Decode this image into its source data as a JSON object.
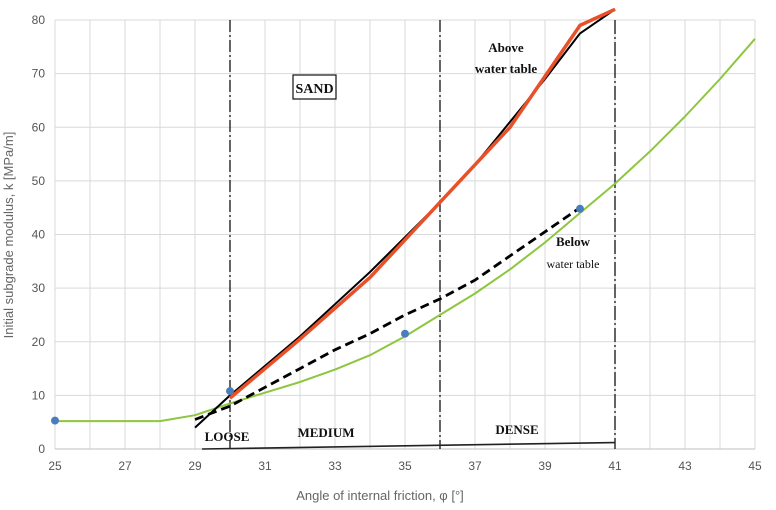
{
  "chart_data": {
    "type": "line",
    "xlabel": "Angle of internal friction, φ [°]",
    "ylabel": "Initial subgrade modulus, k [MPa/m]",
    "xlim": [
      25,
      45
    ],
    "ylim": [
      0,
      80
    ],
    "x_ticks": [
      25,
      27,
      29,
      31,
      33,
      35,
      37,
      39,
      41,
      43,
      45
    ],
    "y_ticks": [
      0,
      10,
      20,
      30,
      40,
      50,
      60,
      70,
      80
    ],
    "grid": true,
    "series": [
      {
        "color": "#8dc63f",
        "style": "solid",
        "x": [
          25,
          26,
          27,
          28,
          29,
          30,
          31,
          32,
          33,
          34,
          35,
          36,
          37,
          38,
          39,
          40,
          41,
          42,
          43,
          44,
          45
        ],
        "y": [
          5.2,
          5.2,
          5.2,
          5.2,
          6.3,
          8.5,
          10.5,
          12.5,
          14.8,
          17.5,
          21,
          25,
          29,
          33.5,
          38.5,
          44,
          49.5,
          55.5,
          62,
          69,
          76.5
        ]
      },
      {
        "color": "#000000",
        "style": "solid",
        "x": [
          29,
          30,
          31,
          32,
          33,
          34,
          35,
          36,
          37,
          38,
          39,
          40,
          41
        ],
        "y": [
          4,
          10,
          15.5,
          21,
          27,
          33,
          39.5,
          46,
          53,
          61,
          69,
          77.5,
          86
        ]
      },
      {
        "color": "#e8502a",
        "style": "solid",
        "x": [
          30,
          32,
          34,
          36,
          38,
          40,
          41
        ],
        "y": [
          9.5,
          20.5,
          32,
          46,
          60,
          79,
          86
        ]
      },
      {
        "color": "#000000",
        "style": "dashed",
        "x": [
          29,
          30,
          31,
          32,
          33,
          34,
          35,
          36,
          37,
          38,
          39,
          40
        ],
        "y": [
          5.5,
          8,
          11.5,
          15,
          18.5,
          21.5,
          25,
          28,
          31.5,
          36,
          40.5,
          45
        ]
      }
    ],
    "points": [
      {
        "x": 25,
        "y": 5.3,
        "color": "#4a7ebb"
      },
      {
        "x": 30,
        "y": 10.8,
        "color": "#4a7ebb"
      },
      {
        "x": 35,
        "y": 21.5,
        "color": "#4a7ebb"
      },
      {
        "x": 40,
        "y": 44.8,
        "color": "#4a7ebb"
      }
    ],
    "vertical_lines": [
      30,
      36,
      41
    ],
    "annotations": {
      "sand": "SAND",
      "above": [
        "Above",
        "water table"
      ],
      "below": [
        "Below",
        "water table"
      ],
      "loose": "LOOSE",
      "medium": "MEDIUM",
      "dense": "DENSE"
    }
  }
}
